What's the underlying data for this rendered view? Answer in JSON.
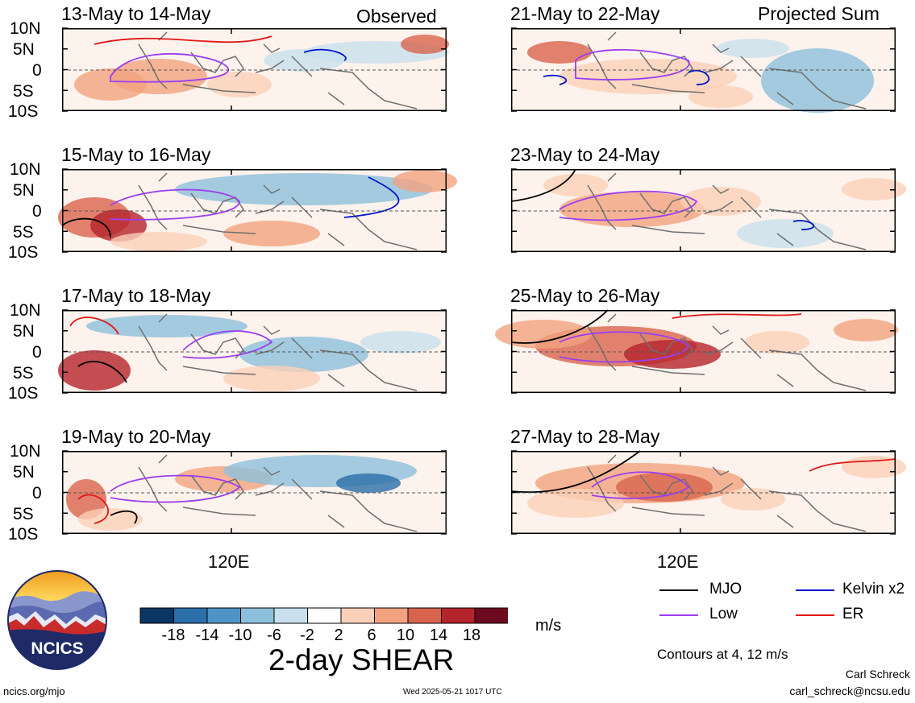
{
  "map": {
    "column_labels": {
      "left": "Observed",
      "right": "Projected Sum"
    },
    "panels": [
      {
        "title": "13-May to 14-May"
      },
      {
        "title": "21-May to 22-May"
      },
      {
        "title": "15-May to 16-May"
      },
      {
        "title": "23-May to 24-May"
      },
      {
        "title": "17-May to 18-May"
      },
      {
        "title": "25-May to 26-May"
      },
      {
        "title": "19-May to 20-May"
      },
      {
        "title": "27-May to 28-May"
      }
    ],
    "lat_labels": [
      "10N",
      "5N",
      "0",
      "5S",
      "10S"
    ],
    "lon_label": "120E",
    "variable_title": "2-day SHEAR",
    "units": "m/s",
    "colorbar": {
      "labels": [
        "-18",
        "-14",
        "-10",
        "-6",
        "-2",
        "2",
        "6",
        "10",
        "14",
        "18"
      ],
      "colors": [
        "#0b3563",
        "#2b6ea8",
        "#4e94c6",
        "#8cbfdc",
        "#c8e0ee",
        "#ffffff",
        "#fbd0b8",
        "#f3a27f",
        "#d9644e",
        "#b5232c",
        "#6e0a1f"
      ]
    },
    "legend": [
      {
        "label": "MJO",
        "color": "#000000"
      },
      {
        "label": "Kelvin x2",
        "color": "#0015c8"
      },
      {
        "label": "Low",
        "color": "#9b3ff0"
      },
      {
        "label": "ER",
        "color": "#e01818"
      }
    ],
    "contour_note": "Contours at 4, 12 m/s",
    "author": "Carl Schreck",
    "email": "carl_schreck@ncsu.edu",
    "website": "ncics.org/mjo",
    "timestamp": "Wed 2025-05-21 1017 UTC",
    "logo_text": "NCICS"
  }
}
